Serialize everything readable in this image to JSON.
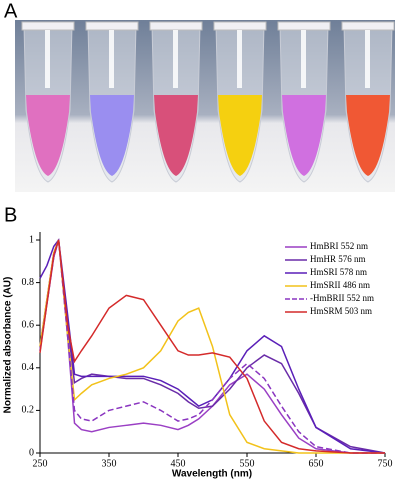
{
  "panel_labels": [
    "A",
    "B"
  ],
  "chart_data": {
    "type": "line",
    "x_label": "Wavelength (nm)",
    "y_label": "Normalized absorbance (AU)",
    "x": [
      250,
      260,
      270,
      277,
      290,
      300,
      310,
      325,
      350,
      375,
      400,
      425,
      450,
      465,
      480,
      500,
      525,
      550,
      575,
      600,
      625,
      650,
      700,
      750
    ],
    "series": [
      {
        "name": "HmBRI 552 nm",
        "color": "#9a3fc4",
        "style": "solid",
        "values": [
          0.48,
          0.7,
          0.92,
          1,
          0.55,
          0.14,
          0.11,
          0.1,
          0.12,
          0.13,
          0.14,
          0.13,
          0.11,
          0.13,
          0.16,
          0.22,
          0.32,
          0.37,
          0.3,
          0.18,
          0.07,
          0.02,
          0,
          0
        ]
      },
      {
        "name": "HmHR 576 nm",
        "color": "#6a2ca8",
        "style": "solid",
        "values": [
          0.5,
          0.72,
          0.94,
          1,
          0.6,
          0.33,
          0.35,
          0.37,
          0.36,
          0.35,
          0.35,
          0.32,
          0.28,
          0.24,
          0.21,
          0.22,
          0.3,
          0.4,
          0.46,
          0.42,
          0.28,
          0.12,
          0.03,
          0
        ]
      },
      {
        "name": "HmSRI 578 nm",
        "color": "#5a1fb8",
        "style": "solid",
        "values": [
          0.82,
          0.88,
          0.97,
          1,
          0.65,
          0.37,
          0.36,
          0.36,
          0.36,
          0.36,
          0.36,
          0.34,
          0.3,
          0.26,
          0.22,
          0.25,
          0.35,
          0.48,
          0.55,
          0.5,
          0.3,
          0.12,
          0.02,
          0
        ]
      },
      {
        "name": "HmSRII 486 nm",
        "color": "#f2c21a",
        "style": "solid",
        "values": [
          0.5,
          0.72,
          0.94,
          1,
          0.55,
          0.25,
          0.28,
          0.32,
          0.35,
          0.37,
          0.4,
          0.48,
          0.62,
          0.66,
          0.68,
          0.5,
          0.18,
          0.05,
          0.02,
          0.01,
          0,
          0,
          0,
          0
        ]
      },
      {
        "name": "-HmBRII 552 nm",
        "color": "#8a35c0",
        "style": "dashed",
        "values": [
          0.48,
          0.7,
          0.92,
          1,
          0.55,
          0.2,
          0.16,
          0.15,
          0.2,
          0.22,
          0.24,
          0.2,
          0.15,
          0.16,
          0.18,
          0.25,
          0.35,
          0.42,
          0.35,
          0.22,
          0.1,
          0.03,
          0,
          0
        ]
      },
      {
        "name": "HmSRM 503 nm",
        "color": "#d42a2a",
        "style": "solid",
        "values": [
          0.47,
          0.7,
          0.93,
          1,
          0.6,
          0.43,
          0.48,
          0.55,
          0.68,
          0.74,
          0.72,
          0.6,
          0.48,
          0.46,
          0.46,
          0.47,
          0.45,
          0.35,
          0.15,
          0.05,
          0.02,
          0.01,
          0,
          0
        ]
      }
    ],
    "xlim": [
      250,
      750
    ],
    "xticks": [
      250,
      350,
      450,
      550,
      650,
      750
    ],
    "ylim": [
      0,
      1
    ],
    "yticks": [
      0,
      0.2,
      0.4,
      0.6,
      0.8,
      1
    ],
    "legend": "upper-right"
  }
}
